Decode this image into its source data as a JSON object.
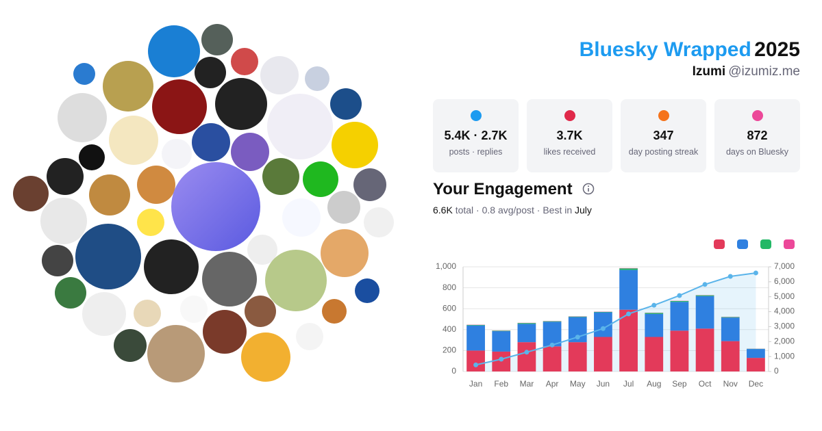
{
  "header": {
    "brand": "Bluesky Wrapped",
    "year": "2025",
    "name": "Izumi",
    "handle": "@izumiz.me"
  },
  "stats": [
    {
      "value": "5.4K · 2.7K",
      "label": "posts · replies",
      "color": "#1d9bf0"
    },
    {
      "value": "3.7K",
      "label": "likes received",
      "color": "#e0294a"
    },
    {
      "value": "347",
      "label": "day posting streak",
      "color": "#f5731b"
    },
    {
      "value": "872",
      "label": "days on Bluesky",
      "color": "#ec4899"
    }
  ],
  "engagement": {
    "title": "Your Engagement",
    "total": "6.6K",
    "middle": "total · 0.8 avg/post · Best in",
    "best_month": "July"
  },
  "chart_data": {
    "type": "stacked-bar-line",
    "categories": [
      "Jan",
      "Feb",
      "Mar",
      "Apr",
      "May",
      "Jun",
      "Jul",
      "Aug",
      "Sep",
      "Oct",
      "Nov",
      "Dec"
    ],
    "series": [
      {
        "color": "#e33a5a",
        "values": [
          200,
          190,
          280,
          240,
          280,
          330,
          590,
          330,
          390,
          410,
          290,
          130
        ]
      },
      {
        "color": "#2f80e0",
        "values": [
          240,
          195,
          175,
          235,
          240,
          235,
          380,
          220,
          275,
          310,
          225,
          85
        ]
      },
      {
        "color": "#22b866",
        "values": [
          5,
          5,
          8,
          5,
          5,
          5,
          15,
          10,
          8,
          8,
          5,
          2
        ]
      },
      {
        "color": "#ec4899",
        "values": [
          2,
          2,
          2,
          2,
          2,
          2,
          3,
          2,
          2,
          2,
          2,
          1
        ]
      }
    ],
    "line": {
      "axis": "y2",
      "color": "#5ab4ea",
      "values": [
        440,
        825,
        1290,
        1770,
        2300,
        2870,
        3850,
        4430,
        5080,
        5820,
        6360,
        6590
      ]
    },
    "ylim": [
      0,
      1000
    ],
    "yticks": [
      0,
      200,
      400,
      600,
      800,
      {
        "value": 1000,
        "label": "1,000"
      }
    ],
    "y2lim": [
      0,
      7000
    ],
    "y2ticks": [
      0,
      {
        "value": 1000,
        "label": "1,000"
      },
      {
        "value": 2000,
        "label": "2,000"
      },
      {
        "value": 3000,
        "label": "3,000"
      },
      {
        "value": 4000,
        "label": "4,000"
      },
      {
        "value": 5000,
        "label": "5,000"
      },
      {
        "value": 6000,
        "label": "6,000"
      },
      {
        "value": 7000,
        "label": "7,000"
      }
    ],
    "grid": true
  }
}
